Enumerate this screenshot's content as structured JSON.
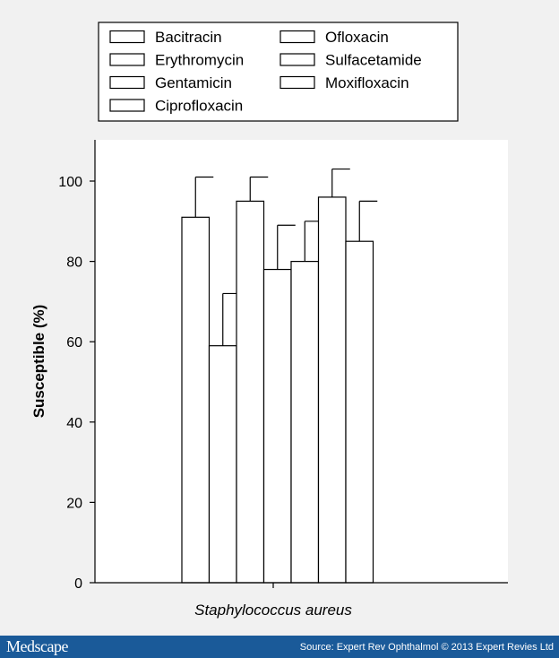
{
  "chart_data": {
    "type": "bar",
    "categories": [
      "Staphylococcus aureus"
    ],
    "series": [
      {
        "name": "Bacitracin",
        "values": [
          91
        ],
        "error": [
          10
        ]
      },
      {
        "name": "Erythromycin",
        "values": [
          59
        ],
        "error": [
          13
        ]
      },
      {
        "name": "Gentamicin",
        "values": [
          95
        ],
        "error": [
          6
        ]
      },
      {
        "name": "Ciprofloxacin",
        "values": [
          78
        ],
        "error": [
          11
        ]
      },
      {
        "name": "Ofloxacin",
        "values": [
          80
        ],
        "error": [
          10
        ]
      },
      {
        "name": "Sulfacetamide",
        "values": [
          96
        ],
        "error": [
          7
        ]
      },
      {
        "name": "Moxifloxacin",
        "values": [
          85
        ],
        "error": [
          10
        ]
      }
    ],
    "ylabel": "Susceptible (%)",
    "xlabel": "",
    "ylim": [
      0,
      110
    ],
    "yticks": [
      0,
      20,
      40,
      60,
      80,
      100
    ],
    "legend_columns": [
      [
        "Bacitracin",
        "Erythromycin",
        "Gentamicin",
        "Ciprofloxacin"
      ],
      [
        "Ofloxacin",
        "Sulfacetamide",
        "Moxifloxacin"
      ]
    ],
    "legend_position": "top",
    "grid": false,
    "colors": {
      "bar_fill": "#ffffff",
      "stroke": "#000000",
      "plot_bg": "#ffffff",
      "page_bg": "#f1f1f1"
    }
  },
  "footer": {
    "brand": "Medscape",
    "source": "Source: Expert Rev Ophthalmol © 2013 Expert Revies Ltd",
    "bg_color": "#1a5a99"
  }
}
